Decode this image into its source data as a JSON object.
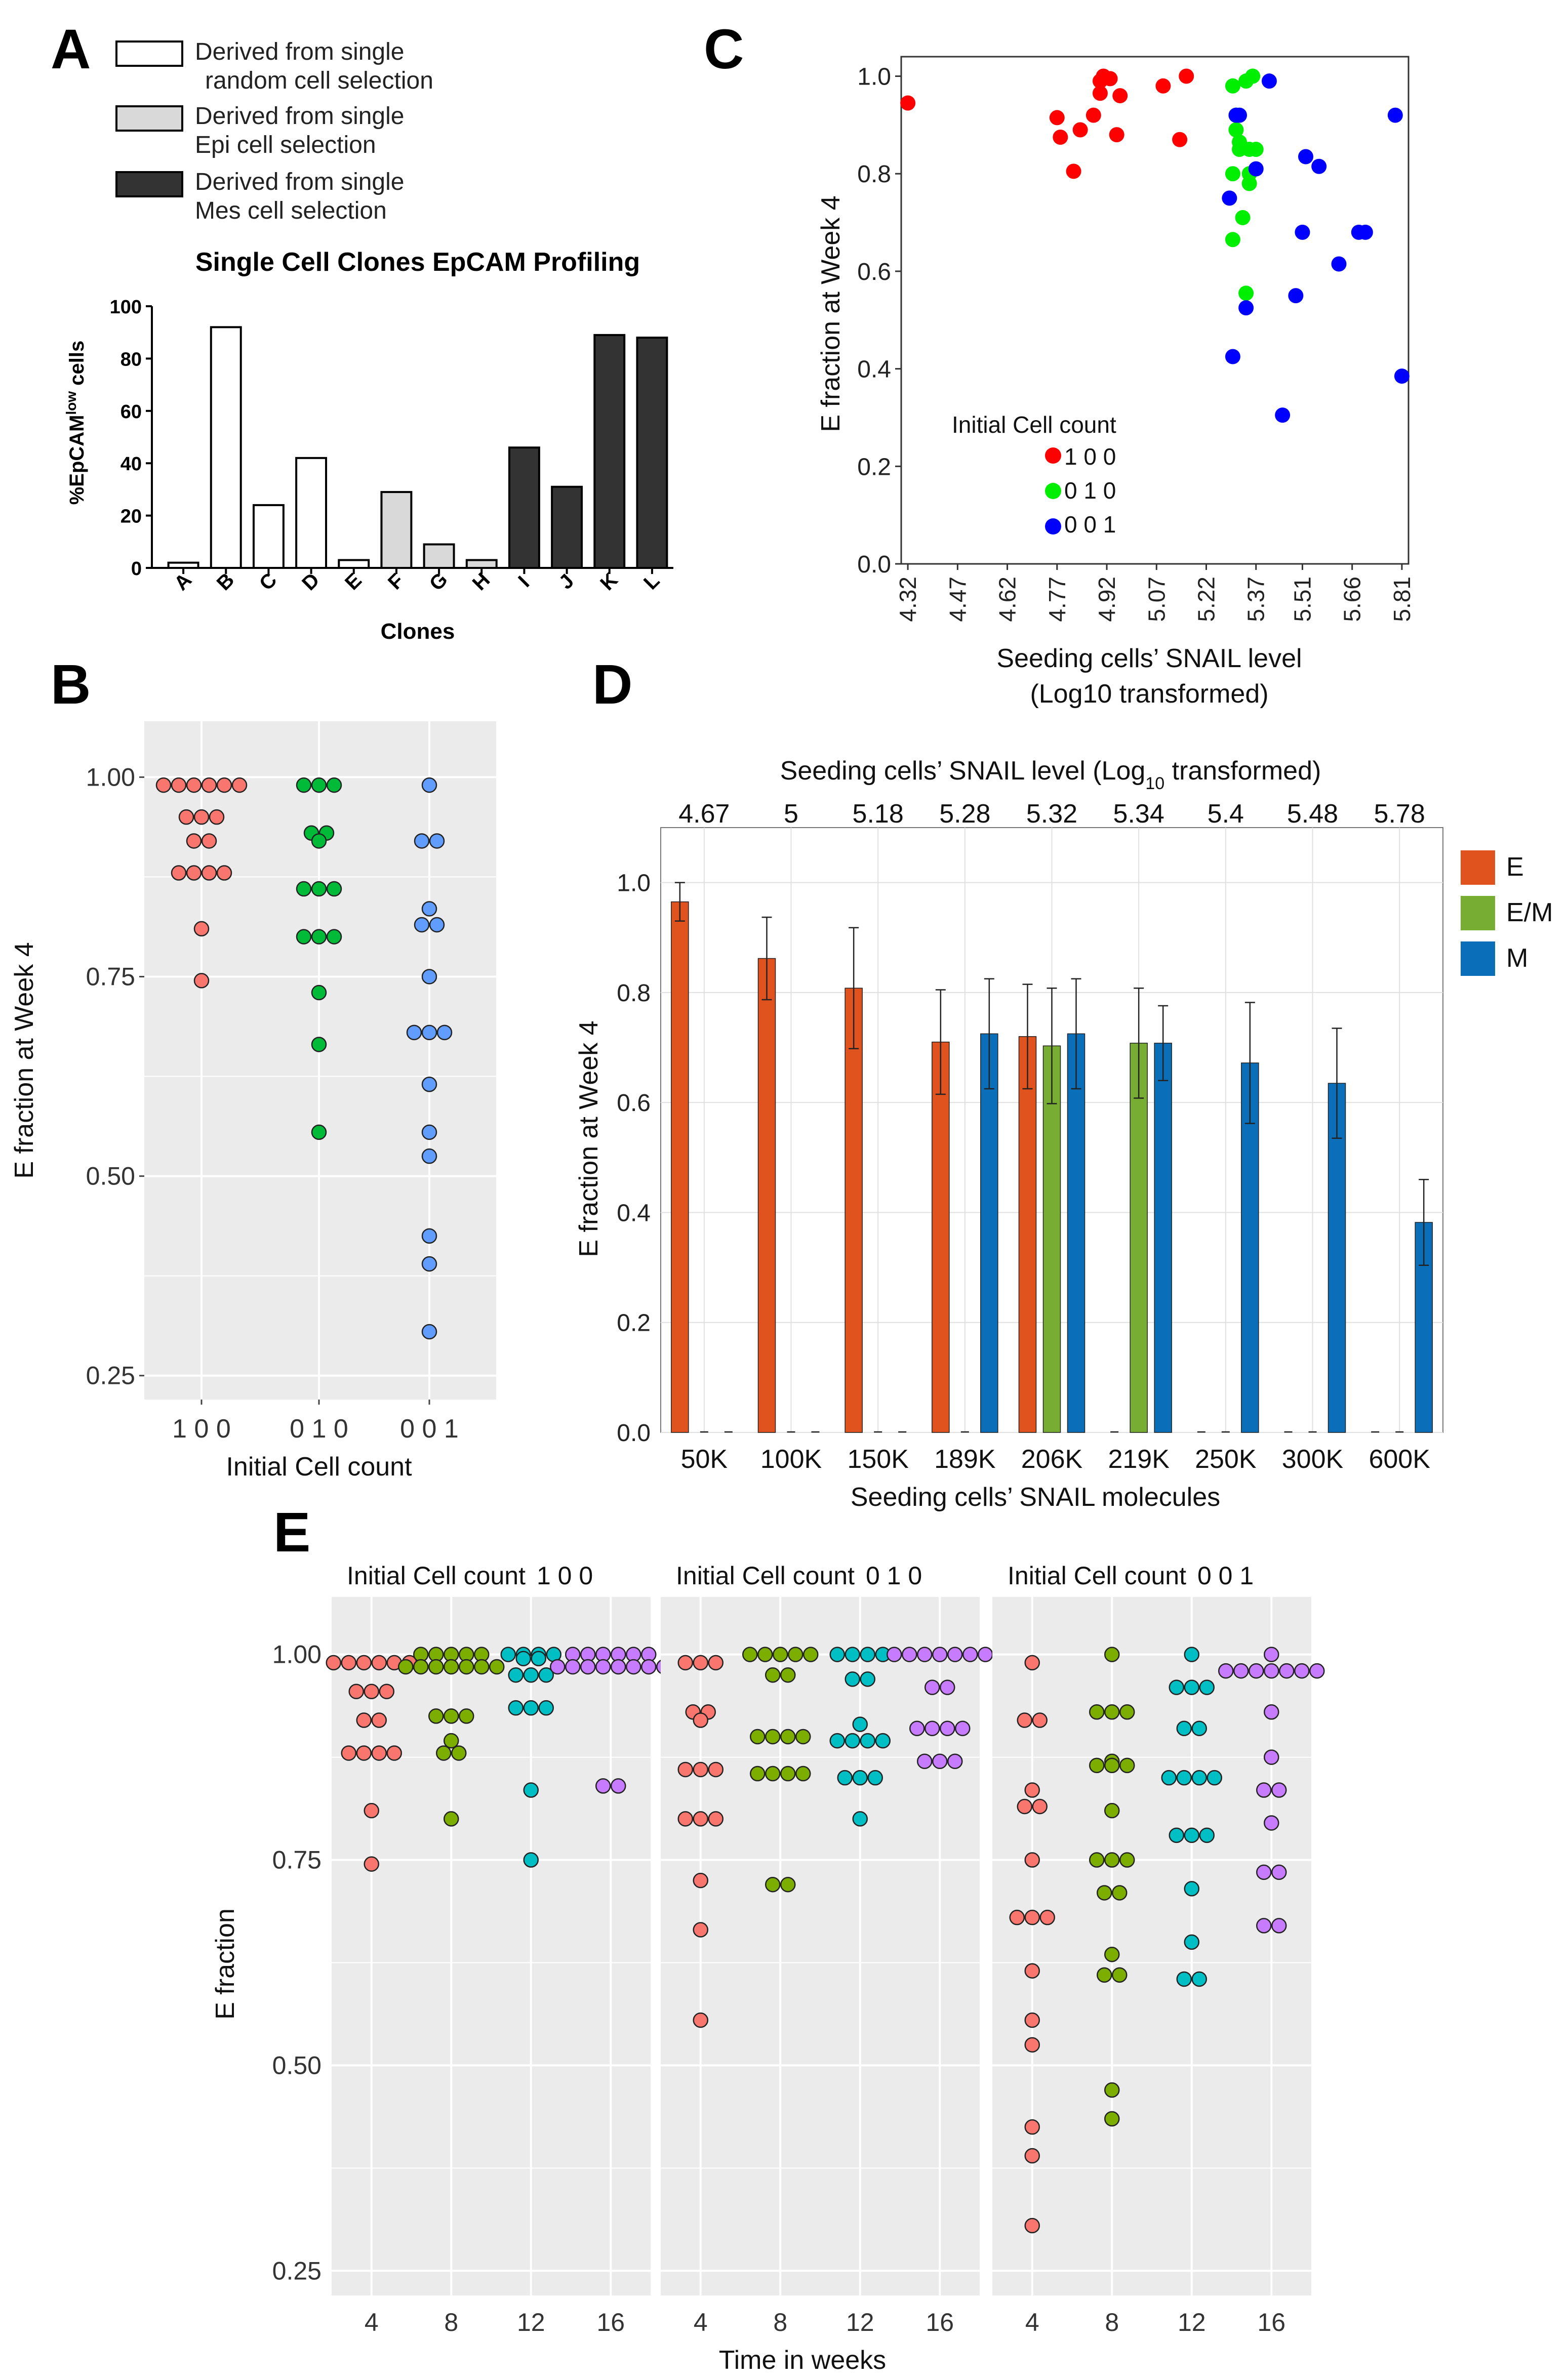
{
  "panels": {
    "A": {
      "letter": "A",
      "legend": [
        {
          "line1": "Derived from single",
          "line2": "random cell selection",
          "fill": "#ffffff"
        },
        {
          "line1": "Derived from single",
          "line2": "Epi cell selection",
          "fill": "#d9d9d9"
        },
        {
          "line1": "Derived from single",
          "line2": "Mes cell selection",
          "fill": "#333333"
        }
      ],
      "ylabel_main": "%EpCAM",
      "ylabel_sup": "low",
      "ylabel_tail": " cells"
    },
    "B": {
      "letter": "B"
    },
    "C": {
      "letter": "C",
      "legend_title": "Initial Cell count"
    },
    "D": {
      "letter": "D",
      "top_axis_title": "Seeding cells’ SNAIL level (Log",
      "top_axis_sub": "10",
      "top_axis_tail": " transformed)"
    },
    "E": {
      "letter": "E",
      "facet_prefix": "Initial Cell count",
      "xlabel": "Time in weeks"
    }
  },
  "chart_data": [
    {
      "id": "A",
      "type": "bar",
      "title": "Single Cell Clones EpCAM Profiling",
      "xlabel": "Clones",
      "ylabel": "%EpCAMlow cells",
      "ylim": [
        0,
        100
      ],
      "yticks": [
        "0",
        "20",
        "40",
        "60",
        "80",
        "100"
      ],
      "categories": [
        "A",
        "B",
        "C",
        "D",
        "E",
        "F",
        "G",
        "H",
        "I",
        "J",
        "K",
        "L"
      ],
      "values": [
        2,
        92,
        24,
        42,
        3,
        29,
        9,
        3,
        46,
        31,
        89,
        88
      ],
      "groups": [
        "random",
        "random",
        "random",
        "random",
        "random",
        "epi",
        "epi",
        "epi",
        "mes",
        "mes",
        "mes",
        "mes"
      ],
      "group_colors": {
        "random": "#ffffff",
        "epi": "#d9d9d9",
        "mes": "#333333"
      }
    },
    {
      "id": "B",
      "type": "scatter",
      "xlabel": "Initial Cell count",
      "ylabel": "E fraction at Week 4",
      "ylim": [
        0.22,
        1.07
      ],
      "yticks": [
        "0.25",
        "0.50",
        "0.75",
        "1.00"
      ],
      "categories": [
        "1 0 0",
        "0 1 0",
        "0 0 1"
      ],
      "series": [
        {
          "name": "1 0 0",
          "color": "#f8766d",
          "values": [
            0.99,
            0.99,
            0.99,
            0.99,
            0.99,
            0.99,
            0.95,
            0.95,
            0.95,
            0.92,
            0.92,
            0.88,
            0.88,
            0.88,
            0.88,
            0.81,
            0.745
          ]
        },
        {
          "name": "0 1 0",
          "color": "#00ba38",
          "values": [
            0.99,
            0.99,
            0.99,
            0.93,
            0.93,
            0.92,
            0.86,
            0.86,
            0.86,
            0.8,
            0.8,
            0.8,
            0.73,
            0.665,
            0.555
          ]
        },
        {
          "name": "0 0 1",
          "color": "#619cff",
          "values": [
            0.99,
            0.92,
            0.92,
            0.835,
            0.815,
            0.815,
            0.75,
            0.68,
            0.68,
            0.68,
            0.615,
            0.555,
            0.525,
            0.425,
            0.39,
            0.305
          ]
        }
      ]
    },
    {
      "id": "C",
      "type": "scatter",
      "xlabel": "Seeding cells’ SNAIL level",
      "xlabel2": "(Log10 transformed)",
      "ylabel": "E fraction at Week 4",
      "xlim": [
        4.3,
        5.83
      ],
      "ylim": [
        0.0,
        1.04
      ],
      "xticks": [
        "4.32",
        "4.47",
        "4.62",
        "4.77",
        "4.92",
        "5.07",
        "5.22",
        "5.37",
        "5.51",
        "5.66",
        "5.81"
      ],
      "yticks": [
        "0.0",
        "0.2",
        "0.4",
        "0.6",
        "0.8",
        "1.0"
      ],
      "series": [
        {
          "name": "1 0 0",
          "color": "#ff0000",
          "points": [
            [
              4.32,
              0.945
            ],
            [
              4.77,
              0.915
            ],
            [
              4.78,
              0.875
            ],
            [
              4.82,
              0.805
            ],
            [
              4.84,
              0.89
            ],
            [
              4.88,
              0.92
            ],
            [
              4.9,
              0.99
            ],
            [
              4.9,
              0.965
            ],
            [
              4.91,
              1.0
            ],
            [
              4.93,
              0.995
            ],
            [
              4.95,
              0.88
            ],
            [
              4.96,
              0.96
            ],
            [
              5.09,
              0.98
            ],
            [
              5.14,
              0.87
            ],
            [
              5.16,
              1.0
            ]
          ]
        },
        {
          "name": "0 1 0",
          "color": "#00ee00",
          "points": [
            [
              5.3,
              0.98
            ],
            [
              5.3,
              0.8
            ],
            [
              5.3,
              0.665
            ],
            [
              5.31,
              0.92
            ],
            [
              5.31,
              0.89
            ],
            [
              5.32,
              0.865
            ],
            [
              5.32,
              0.85
            ],
            [
              5.33,
              0.71
            ],
            [
              5.34,
              0.99
            ],
            [
              5.34,
              0.555
            ],
            [
              5.35,
              0.78
            ],
            [
              5.35,
              0.85
            ],
            [
              5.35,
              0.8
            ],
            [
              5.36,
              1.0
            ],
            [
              5.37,
              0.85
            ]
          ]
        },
        {
          "name": "0 0 1",
          "color": "#0000ff",
          "points": [
            [
              5.29,
              0.75
            ],
            [
              5.3,
              0.425
            ],
            [
              5.31,
              0.92
            ],
            [
              5.32,
              0.92
            ],
            [
              5.34,
              0.525
            ],
            [
              5.37,
              0.81
            ],
            [
              5.41,
              0.99
            ],
            [
              5.45,
              0.305
            ],
            [
              5.49,
              0.55
            ],
            [
              5.51,
              0.68
            ],
            [
              5.52,
              0.835
            ],
            [
              5.56,
              0.815
            ],
            [
              5.62,
              0.615
            ],
            [
              5.68,
              0.68
            ],
            [
              5.7,
              0.68
            ],
            [
              5.79,
              0.92
            ],
            [
              5.81,
              0.385
            ]
          ]
        }
      ],
      "legend_title": "Initial Cell count"
    },
    {
      "id": "D",
      "type": "bar",
      "xlabel": "Seeding cells’ SNAIL molecules",
      "ylabel": "E fraction at Week 4",
      "top_axis_title": "Seeding cells’ SNAIL level (Log10 transformed)",
      "ylim": [
        0.0,
        1.1
      ],
      "yticks": [
        "0.0",
        "0.2",
        "0.4",
        "0.6",
        "0.8",
        "1.0"
      ],
      "categories": [
        "50K",
        "100K",
        "150K",
        "189K",
        "206K",
        "219K",
        "250K",
        "300K",
        "600K"
      ],
      "top_labels": [
        "4.67",
        "5",
        "5.18",
        "5.28",
        "5.32",
        "5.34",
        "5.4",
        "5.48",
        "5.78"
      ],
      "series": [
        {
          "name": "E",
          "color": "#e0531f",
          "values": [
            0.965,
            0.862,
            0.808,
            0.71,
            0.72,
            0,
            0,
            0,
            0
          ],
          "errors": [
            0.035,
            0.075,
            0.11,
            0.095,
            0.095,
            0,
            0,
            0,
            0
          ]
        },
        {
          "name": "E/M",
          "color": "#77ad33",
          "values": [
            0,
            0,
            0,
            0,
            0.703,
            0.708,
            0,
            0,
            0
          ],
          "errors": [
            0,
            0,
            0,
            0,
            0.105,
            0.1,
            0,
            0,
            0
          ]
        },
        {
          "name": "M",
          "color": "#0b6eb8",
          "values": [
            0,
            0,
            0,
            0.725,
            0.725,
            0.708,
            0.672,
            0.635,
            0.382
          ],
          "errors": [
            0,
            0,
            0,
            0.1,
            0.1,
            0.068,
            0.11,
            0.1,
            0.078
          ]
        }
      ]
    },
    {
      "id": "E",
      "type": "scatter",
      "xlabel": "Time in weeks",
      "ylabel": "E fraction",
      "ylim": [
        0.22,
        1.07
      ],
      "yticks": [
        "0.25",
        "0.50",
        "0.75",
        "1.00"
      ],
      "x": [
        "4",
        "8",
        "12",
        "16"
      ],
      "week_colors": [
        "#f8766d",
        "#7cae00",
        "#00bfc4",
        "#c77cff"
      ],
      "facets": [
        {
          "label": "1 0 0",
          "weeks": [
            [
              0.99,
              0.99,
              0.99,
              0.99,
              0.99,
              0.99,
              0.955,
              0.955,
              0.955,
              0.92,
              0.92,
              0.88,
              0.88,
              0.88,
              0.88,
              0.81,
              0.745
            ],
            [
              1.0,
              1.0,
              1.0,
              1.0,
              1.0,
              0.985,
              0.985,
              0.985,
              0.985,
              0.985,
              0.985,
              0.985,
              0.925,
              0.925,
              0.925,
              0.895,
              0.88,
              0.88,
              0.8
            ],
            [
              1.0,
              1.0,
              1.0,
              1.0,
              0.995,
              0.995,
              0.975,
              0.975,
              0.975,
              0.935,
              0.935,
              0.935,
              0.835,
              0.75
            ],
            [
              1.0,
              1.0,
              1.0,
              1.0,
              1.0,
              1.0,
              0.985,
              0.985,
              0.985,
              0.985,
              0.985,
              0.985,
              0.985,
              0.985,
              0.84,
              0.84
            ]
          ]
        },
        {
          "label": "0 1 0",
          "weeks": [
            [
              0.99,
              0.99,
              0.99,
              0.93,
              0.93,
              0.92,
              0.86,
              0.86,
              0.86,
              0.8,
              0.8,
              0.8,
              0.725,
              0.665,
              0.555
            ],
            [
              1.0,
              1.0,
              1.0,
              1.0,
              1.0,
              0.975,
              0.975,
              0.9,
              0.9,
              0.9,
              0.9,
              0.855,
              0.855,
              0.855,
              0.855,
              0.72,
              0.72
            ],
            [
              1.0,
              1.0,
              1.0,
              1.0,
              0.97,
              0.97,
              0.915,
              0.895,
              0.895,
              0.895,
              0.895,
              0.85,
              0.85,
              0.85,
              0.8
            ],
            [
              1.0,
              1.0,
              1.0,
              1.0,
              1.0,
              1.0,
              1.0,
              0.96,
              0.96,
              0.91,
              0.91,
              0.91,
              0.91,
              0.87,
              0.87,
              0.87
            ]
          ]
        },
        {
          "label": "0 0 1",
          "weeks": [
            [
              0.99,
              0.92,
              0.92,
              0.835,
              0.815,
              0.815,
              0.75,
              0.68,
              0.68,
              0.68,
              0.615,
              0.555,
              0.525,
              0.425,
              0.39,
              0.305
            ],
            [
              1.0,
              0.93,
              0.93,
              0.93,
              0.87,
              0.865,
              0.865,
              0.865,
              0.81,
              0.75,
              0.75,
              0.75,
              0.71,
              0.71,
              0.635,
              0.61,
              0.61,
              0.47,
              0.435
            ],
            [
              1.0,
              0.96,
              0.96,
              0.96,
              0.91,
              0.91,
              0.85,
              0.85,
              0.85,
              0.85,
              0.78,
              0.78,
              0.78,
              0.715,
              0.65,
              0.605,
              0.605
            ],
            [
              1.0,
              0.98,
              0.98,
              0.98,
              0.98,
              0.98,
              0.98,
              0.98,
              0.93,
              0.875,
              0.835,
              0.835,
              0.795,
              0.735,
              0.735,
              0.67,
              0.67
            ]
          ]
        }
      ]
    }
  ]
}
